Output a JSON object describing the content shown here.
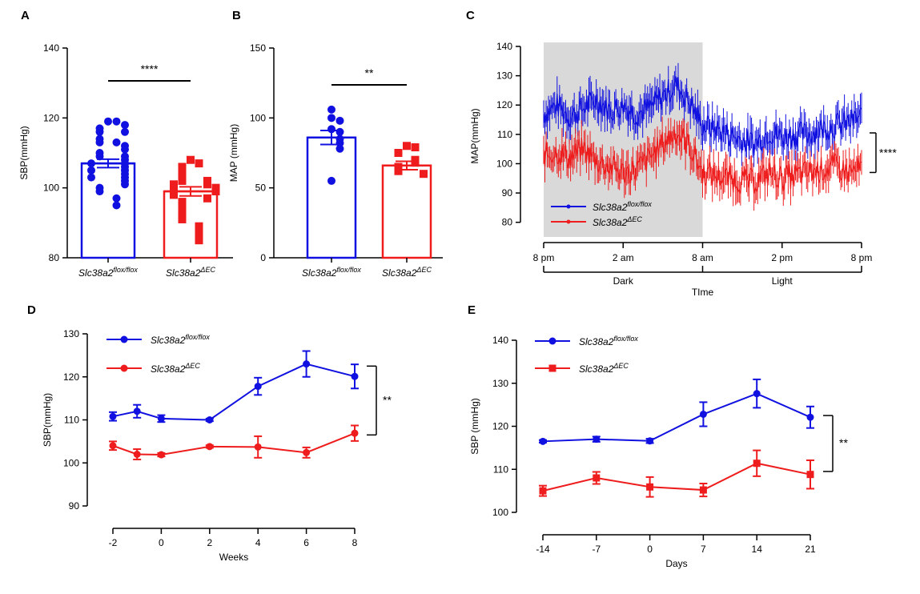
{
  "colors": {
    "flox": "#1010e0",
    "ec": "#ee1c1c",
    "shade": "#d9d9d9",
    "axis": "#000000"
  },
  "chart_data": [
    {
      "panel": "A",
      "type": "bar",
      "ylabel": "SBP(mmHg)",
      "ylim": [
        80,
        140
      ],
      "yticks": [
        80,
        100,
        120,
        140
      ],
      "significance": "****",
      "series": [
        {
          "name_main": "Slc38a2",
          "name_sup": "flox/flox",
          "mean": 107,
          "sem": 1.2,
          "points": [
            119,
            119,
            117,
            118,
            116,
            116,
            114,
            113,
            113,
            112,
            111,
            110,
            109,
            109,
            108,
            107,
            107,
            106,
            105,
            105,
            104,
            103,
            103,
            102,
            101,
            100,
            99,
            97,
            95
          ]
        },
        {
          "name_main": "Slc38a2",
          "name_sup": "ΔEC",
          "mean": 99,
          "sem": 1.3,
          "points": [
            108,
            107,
            106,
            105,
            104,
            103,
            102,
            102,
            101,
            101,
            100,
            100,
            99,
            99,
            98,
            97,
            96,
            95,
            94,
            93,
            92,
            91,
            89,
            87,
            85
          ]
        }
      ]
    },
    {
      "panel": "B",
      "type": "bar",
      "ylabel": "MAP (mmHg)",
      "ylim": [
        0,
        150
      ],
      "yticks": [
        0,
        50,
        100,
        150
      ],
      "significance": "**",
      "series": [
        {
          "name_main": "Slc38a2",
          "name_sup": "flox/flox",
          "mean": 86,
          "sem": 5,
          "points": [
            106,
            100,
            98,
            92,
            90,
            85,
            82,
            78,
            55
          ]
        },
        {
          "name_main": "Slc38a2",
          "name_sup": "ΔEC",
          "mean": 66,
          "sem": 3,
          "points": [
            80,
            79,
            75,
            70,
            68,
            65,
            63,
            62,
            60
          ]
        }
      ]
    },
    {
      "panel": "C",
      "type": "line",
      "ylabel": "MAP(mmHg)",
      "xlabel": "TIme",
      "ylim": [
        75,
        140
      ],
      "yticks": [
        80,
        90,
        100,
        110,
        120,
        130,
        140
      ],
      "xticks": [
        "8 pm",
        "2 am",
        "8 am",
        "2 pm",
        "8 pm"
      ],
      "x_hours": [
        0,
        6,
        12,
        18,
        24
      ],
      "phases": [
        "Dark",
        "Light"
      ],
      "dark_hours": [
        0,
        12
      ],
      "significance": "****",
      "series": [
        {
          "name_main": "Slc38a2",
          "name_sup": "flox/flox",
          "hours": [
            0,
            1,
            2,
            3,
            4,
            5,
            6,
            7,
            8,
            9,
            10,
            11,
            12,
            13,
            14,
            15,
            16,
            17,
            18,
            19,
            20,
            21,
            22,
            23,
            24
          ],
          "values": [
            117,
            120,
            116,
            119,
            122,
            118,
            120,
            117,
            119,
            123,
            127,
            121,
            113,
            112,
            110,
            108,
            107,
            111,
            109,
            110,
            110,
            112,
            113,
            114,
            116
          ]
        },
        {
          "name_main": "Slc38a2",
          "name_sup": "ΔEC",
          "hours": [
            0,
            1,
            2,
            3,
            4,
            5,
            6,
            7,
            8,
            9,
            10,
            11,
            12,
            13,
            14,
            15,
            16,
            17,
            18,
            19,
            20,
            21,
            22,
            23,
            24
          ],
          "values": [
            103,
            104,
            102,
            105,
            101,
            99,
            97,
            98,
            102,
            107,
            111,
            106,
            97,
            96,
            95,
            94,
            94,
            97,
            95,
            96,
            97,
            98,
            99,
            97,
            98
          ]
        }
      ]
    },
    {
      "panel": "D",
      "type": "line",
      "ylabel": "SBP(mmHg)",
      "xlabel": "Weeks",
      "ylim": [
        90,
        130
      ],
      "yticks": [
        90,
        100,
        110,
        120,
        130
      ],
      "xticks": [
        -2,
        0,
        2,
        4,
        6,
        8
      ],
      "xlim": [
        -2,
        8
      ],
      "significance": "**",
      "series": [
        {
          "name_main": "Slc38a2",
          "name_sup": "flox/flox",
          "x": [
            -2,
            -1,
            0,
            2,
            4,
            6,
            8
          ],
          "values": [
            110.8,
            112,
            110.3,
            110,
            117.8,
            123,
            120.1
          ],
          "err": [
            1,
            1.5,
            0.8,
            0.3,
            2,
            3,
            2.8
          ]
        },
        {
          "name_main": "Slc38a2",
          "name_sup": "ΔEC",
          "x": [
            -2,
            -1,
            0,
            2,
            4,
            6,
            8
          ],
          "values": [
            104,
            102,
            101.9,
            103.8,
            103.7,
            102.4,
            106.9
          ],
          "err": [
            1,
            1.2,
            0.4,
            0.3,
            2.5,
            1.2,
            1.8
          ]
        }
      ]
    },
    {
      "panel": "E",
      "type": "line",
      "ylabel": "SBP (mmHg)",
      "xlabel": "Days",
      "ylim": [
        100,
        140
      ],
      "yticks": [
        100,
        110,
        120,
        130,
        140
      ],
      "xticks": [
        -14,
        -7,
        0,
        7,
        14,
        21
      ],
      "xlim": [
        -14,
        21
      ],
      "significance": "**",
      "series": [
        {
          "name_main": "Slc38a2",
          "name_sup": "flox/flox",
          "x": [
            -14,
            -7,
            0,
            7,
            14,
            21
          ],
          "values": [
            116.5,
            117,
            116.6,
            122.8,
            127.6,
            122.1
          ],
          "err": [
            0.3,
            0.6,
            0.5,
            2.8,
            3.3,
            2.5
          ]
        },
        {
          "name_main": "Slc38a2",
          "name_sup": "ΔEC",
          "x": [
            -14,
            -7,
            0,
            7,
            14,
            21
          ],
          "values": [
            105,
            108,
            105.9,
            105.2,
            111.4,
            108.8
          ],
          "err": [
            1.2,
            1.4,
            2.3,
            1.5,
            3,
            3.3
          ]
        }
      ]
    }
  ]
}
